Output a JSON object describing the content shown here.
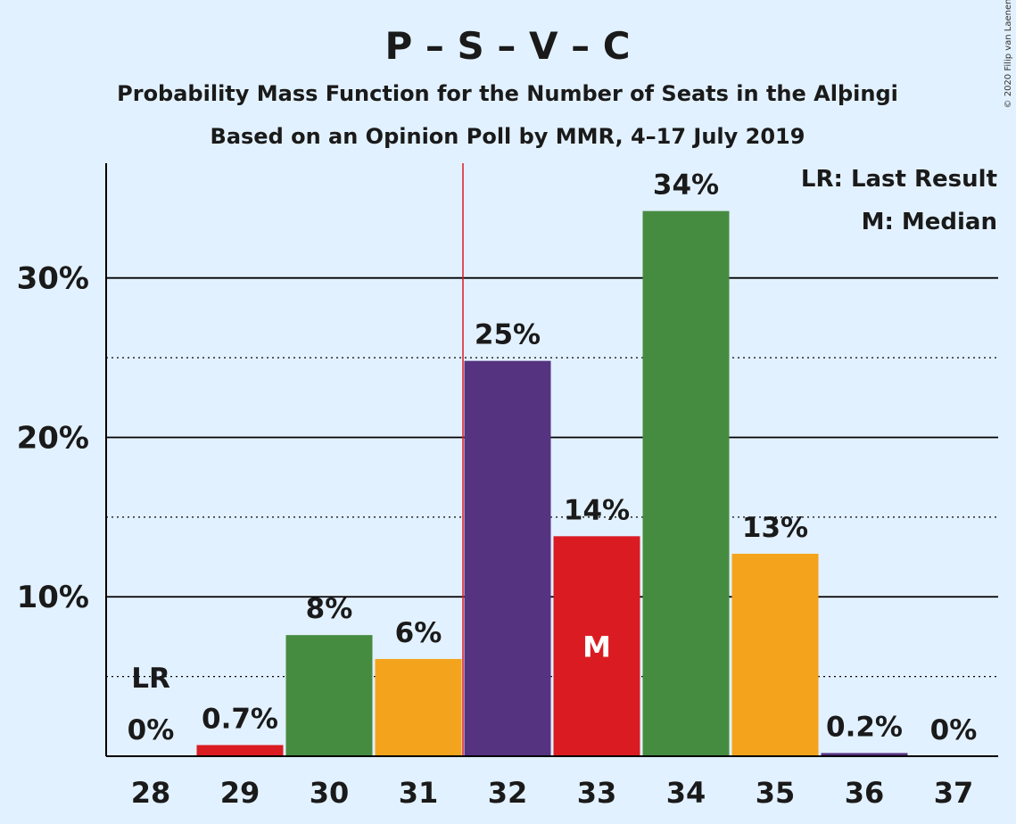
{
  "chart_data": {
    "type": "bar",
    "title": "P – S – V – C",
    "subtitle_1": "Probability Mass Function for the Number of Seats in the Alþingi",
    "subtitle_2": "Based on an Opinion Poll by MMR, 4–17 July 2019",
    "copyright": "© 2020 Filip van Laenen",
    "categories": [
      "28",
      "29",
      "30",
      "31",
      "32",
      "33",
      "34",
      "35",
      "36",
      "37"
    ],
    "values": [
      0,
      0.7,
      7.6,
      6.1,
      24.8,
      13.8,
      34.2,
      12.7,
      0.2,
      0
    ],
    "value_labels": [
      "0%",
      "0.7%",
      "8%",
      "6%",
      "25%",
      "14%",
      "34%",
      "13%",
      "0.2%",
      "0%"
    ],
    "bar_colors": [
      "#da1c22",
      "#da1c22",
      "#468c40",
      "#f4a31d",
      "#563380",
      "#da1c22",
      "#468c40",
      "#f4a31d",
      "#563380",
      "#da1c22"
    ],
    "y_ticks": [
      {
        "value": 10,
        "label": "10%"
      },
      {
        "value": 20,
        "label": "20%"
      },
      {
        "value": 30,
        "label": "30%"
      }
    ],
    "y_minor_ticks": [
      5,
      15,
      25
    ],
    "ylim": [
      0,
      37.2
    ],
    "last_result_seat": "28",
    "last_result_mark": "LR",
    "median_seat": "33",
    "median_mark": "M",
    "majority_line_between": [
      "31",
      "32"
    ],
    "majority_line_color": "#da1c22",
    "legend": {
      "last_result": "LR: Last Result",
      "median": "M: Median",
      "position": "top-right"
    },
    "grid": true
  }
}
